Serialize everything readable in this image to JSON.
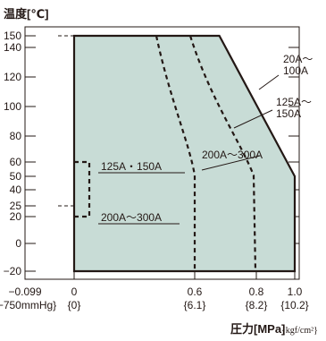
{
  "chart_data": {
    "type": "area",
    "title": "",
    "ylabel": "温度[℃]",
    "xlabel": "圧力[MPa]",
    "xlabel_unit": "{kgf/cm²}",
    "xlim": [
      -0.099,
      1.0
    ],
    "ylim": [
      -20,
      150
    ],
    "x_ticks": [
      {
        "value": -0.099,
        "label": "−0.099",
        "sub": "{−750mmHg}"
      },
      {
        "value": 0,
        "label": "0",
        "sub": "{0}"
      },
      {
        "value": 0.6,
        "label": "0.6",
        "sub": "{6.1}"
      },
      {
        "value": 0.8,
        "label": "0.8",
        "sub": "{8.2}"
      },
      {
        "value": 1.0,
        "label": "1.0",
        "sub": "{10.2}"
      }
    ],
    "y_ticks": [
      150,
      140,
      120,
      100,
      80,
      60,
      50,
      40,
      25,
      20,
      0,
      -20
    ],
    "y_tick_labels": [
      "150",
      "140",
      "120",
      "100",
      "80",
      "60",
      "50",
      "40",
      "25",
      "20",
      "0",
      "−20"
    ],
    "region": {
      "name": "20A～100A",
      "fill": "#c8dcd6",
      "points": [
        [
          0,
          -20
        ],
        [
          0,
          150
        ],
        [
          0.68,
          150
        ],
        [
          1.0,
          50
        ],
        [
          1.0,
          -20
        ]
      ]
    },
    "series": [
      {
        "name": "125A～150A",
        "style": "dashed",
        "points": [
          [
            0.35,
            150
          ],
          [
            0.56,
            80
          ],
          [
            0.56,
            50
          ],
          [
            0.56,
            -20
          ]
        ]
      },
      {
        "name": "200A～300A",
        "style": "dashed",
        "points": [
          [
            0.0,
            150
          ],
          [
            0.0,
            80
          ],
          [
            0.0,
            -20
          ]
        ]
      },
      {
        "name": "200A～300A (curve)",
        "style": "dashed",
        "points": [
          [
            0.5,
            150
          ],
          [
            0.76,
            60
          ],
          [
            0.8,
            50
          ],
          [
            0.8,
            -20
          ]
        ]
      }
    ],
    "annotations": [
      {
        "text": "20A～",
        "text2": "100A"
      },
      {
        "text": "125A～",
        "text2": "150A"
      },
      {
        "text": "200A～300A"
      },
      {
        "text": "125A・150A"
      },
      {
        "text": "200A～300A"
      }
    ],
    "colors": {
      "region": "#c8dcd6",
      "line": "#231815"
    }
  }
}
